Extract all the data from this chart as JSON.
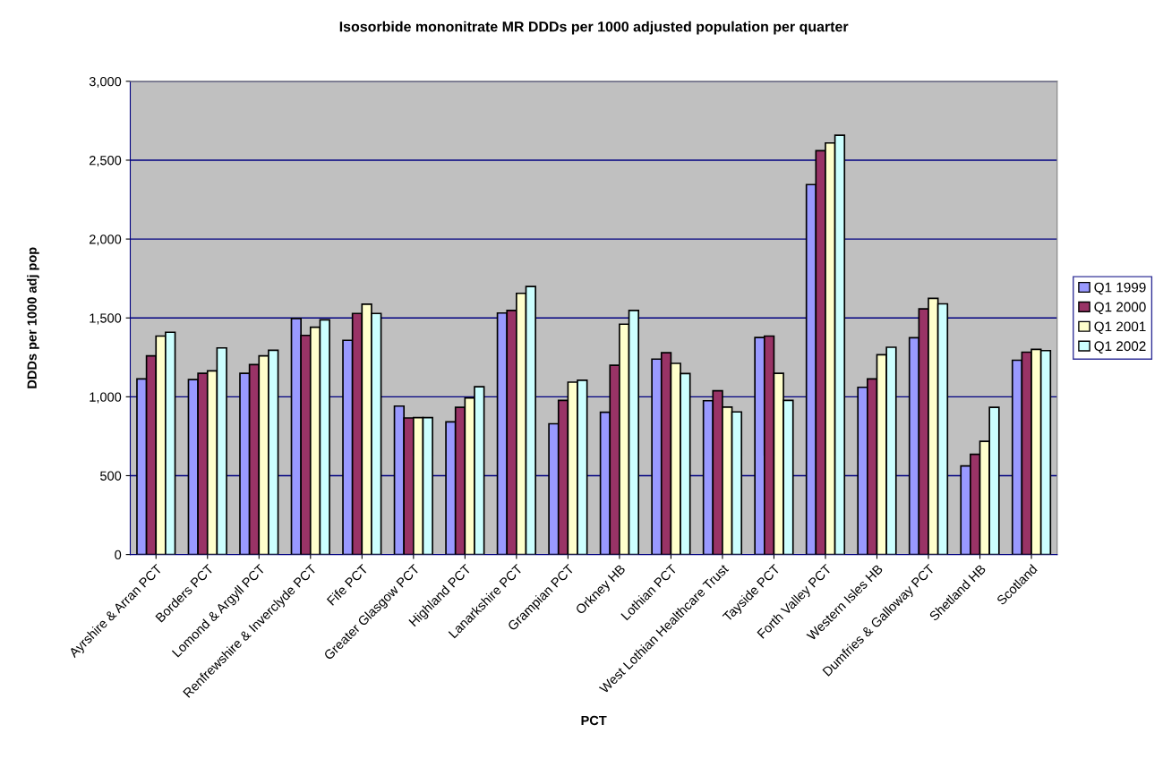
{
  "chart_data": {
    "type": "bar",
    "title": "Isosorbide mononitrate MR DDDs per 1000 adjusted population per quarter",
    "xlabel": "PCT",
    "ylabel": "DDDs per 1000 adj pop",
    "categories": [
      "Ayrshire & Arran PCT",
      "Borders PCT",
      "Lomond & Argyll PCT",
      "Renfrewshire & Inverclyde PCT",
      "Fife PCT",
      "Greater Glasgow PCT",
      "Highland PCT",
      "Lanarkshire PCT",
      "Grampian PCT",
      "Orkney HB",
      "Lothian PCT",
      "West Lothian Healthcare Trust",
      "Tayside PCT",
      "Forth Valley PCT",
      "Western Isles HB",
      "Dumfries & Galloway PCT",
      "Shetland HB",
      "Scotland"
    ],
    "series": [
      {
        "name": "Q1 1999",
        "color": "#9999ff",
        "values": [
          1113,
          1109,
          1149,
          1496,
          1358,
          941,
          841,
          1531,
          829,
          902,
          1239,
          975,
          1376,
          2345,
          1060,
          1374,
          562,
          1232
        ]
      },
      {
        "name": "Q1 2000",
        "color": "#993366",
        "values": [
          1259,
          1149,
          1204,
          1389,
          1528,
          866,
          933,
          1547,
          977,
          1200,
          1279,
          1038,
          1385,
          2560,
          1113,
          1557,
          635,
          1283
        ]
      },
      {
        "name": "Q1 2001",
        "color": "#ffffcc",
        "values": [
          1385,
          1164,
          1259,
          1441,
          1587,
          868,
          993,
          1656,
          1093,
          1460,
          1212,
          935,
          1149,
          2609,
          1267,
          1624,
          718,
          1301
        ]
      },
      {
        "name": "Q1 2002",
        "color": "#ccffff",
        "values": [
          1409,
          1310,
          1295,
          1488,
          1528,
          868,
          1064,
          1699,
          1105,
          1547,
          1147,
          904,
          977,
          2658,
          1314,
          1589,
          933,
          1293
        ]
      }
    ],
    "ylim": [
      0,
      3000
    ],
    "yticks": [
      {
        "value": 0,
        "label": "0"
      },
      {
        "value": 500,
        "label": "500"
      },
      {
        "value": 1000,
        "label": "1,000"
      },
      {
        "value": 1500,
        "label": "1,500"
      },
      {
        "value": 2000,
        "label": "2,000"
      },
      {
        "value": 2500,
        "label": "2,500"
      },
      {
        "value": 3000,
        "label": "3,000"
      }
    ],
    "grid": "y",
    "legend": "right"
  }
}
